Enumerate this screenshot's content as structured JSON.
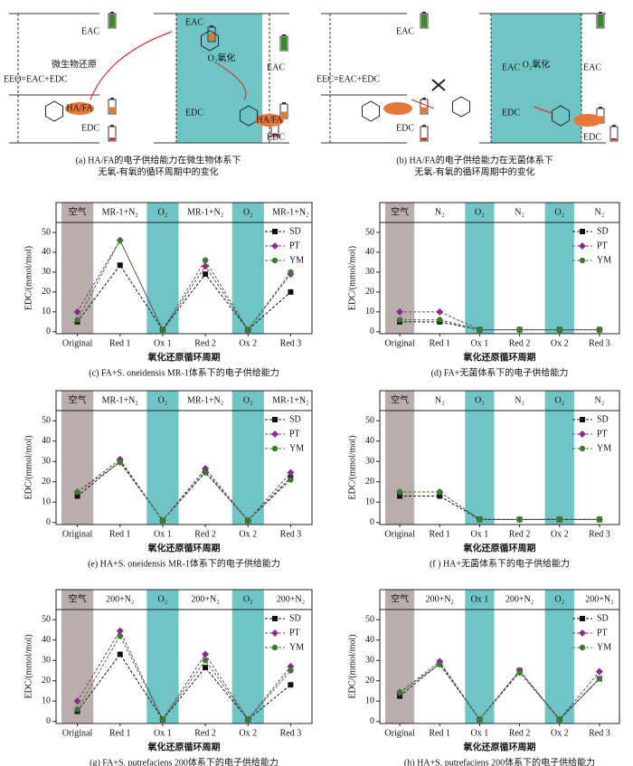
{
  "diagrams": [
    {
      "labels": [
        "EAC",
        "EEO=EAC+EDC",
        "EDC",
        "微生物还原",
        "HA/FA",
        "EAC",
        "O₂氧化",
        "EAC",
        "EDC",
        "EDC",
        "HA/FA"
      ],
      "caption": [
        "(a) HA/FA的电子供给能力在微生物体系下",
        "无氧-有氧的循环周期中的变化"
      ]
    },
    {
      "labels": [
        "EAC",
        "EEC=EAC+EDC",
        "EDC",
        "EAC",
        "O₂氧化",
        "EAC",
        "EDC",
        "EDC"
      ],
      "caption": [
        "(b) HA/FA的电子供给能力在无菌体系下",
        "无氧-有氧的循环周期中的变化"
      ]
    }
  ],
  "chart_data": [
    {
      "type": "line",
      "caption": "(c) FA+S. oneidensis MR-1体系下的电子供给能力",
      "xlabel": "氧化还原循环周期",
      "ylabel": "EDC/(mmol/mol)",
      "categories": [
        "Original",
        "Red 1",
        "Ox 1",
        "Red 2",
        "Ox 2",
        "Red 3"
      ],
      "band_labels": [
        "空气",
        "MR-1+N₂",
        "O₂",
        "MR-1+N₂",
        "O₂",
        "MR-1+N₂"
      ],
      "shade": [
        "#b9aeab",
        null,
        "#6fc5c5",
        null,
        "#6fc5c5",
        null
      ],
      "ylim": [
        -1,
        55
      ],
      "yticks": [
        0,
        10,
        20,
        30,
        40,
        50
      ],
      "series": [
        {
          "name": "SD",
          "color": "#111111",
          "marker": "square",
          "values": [
            5,
            33.5,
            1,
            29,
            1,
            20
          ]
        },
        {
          "name": "PT",
          "color": "#8b2a8b",
          "marker": "diamond",
          "values": [
            10,
            46,
            1,
            33,
            1,
            29
          ]
        },
        {
          "name": "YM",
          "color": "#3d7a2c",
          "marker": "circle",
          "values": [
            6,
            46,
            1,
            36,
            1,
            30
          ]
        }
      ]
    },
    {
      "type": "line",
      "caption": "(d) FA+无菌体系下的电子供给能力",
      "xlabel": "氧化还原循环周期",
      "ylabel": "EDC/(mmol/mol)",
      "categories": [
        "Original",
        "Red 1",
        "Ox 1",
        "Red 2",
        "Ox 2",
        "Red 3"
      ],
      "band_labels": [
        "空气",
        "N₂",
        "O₂",
        "N₂",
        "O₂",
        "N₂"
      ],
      "shade": [
        "#b9aeab",
        null,
        "#6fc5c5",
        null,
        "#6fc5c5",
        null
      ],
      "ylim": [
        -1,
        55
      ],
      "yticks": [
        0,
        10,
        20,
        30,
        40,
        50
      ],
      "series": [
        {
          "name": "SD",
          "color": "#111111",
          "marker": "square",
          "values": [
            5,
            5,
            1,
            1,
            1,
            1
          ]
        },
        {
          "name": "PT",
          "color": "#8b2a8b",
          "marker": "diamond",
          "values": [
            10,
            10,
            1,
            1,
            1,
            1
          ]
        },
        {
          "name": "YM",
          "color": "#3d7a2c",
          "marker": "circle",
          "values": [
            6,
            6,
            1,
            1,
            1,
            1
          ]
        }
      ]
    },
    {
      "type": "line",
      "caption": "(e) HA+S. oneidensis MR-1体系下的电子供给能力",
      "xlabel": "氧化还原循环周期",
      "ylabel": "EDC/(mmol/mol)",
      "categories": [
        "Original",
        "Red 1",
        "Ox 1",
        "Red 2",
        "Ox 2",
        "Red 3"
      ],
      "band_labels": [
        "空气",
        "MR-1+N₂",
        "O₂",
        "MR-1+N₂",
        "O₂",
        "MR-1+N₂"
      ],
      "shade": [
        "#b9aeab",
        null,
        "#6fc5c5",
        null,
        "#6fc5c5",
        null
      ],
      "ylim": [
        -1,
        55
      ],
      "yticks": [
        0,
        10,
        20,
        30,
        40,
        50
      ],
      "series": [
        {
          "name": "SD",
          "color": "#111111",
          "marker": "square",
          "values": [
            13,
            30,
            1,
            25,
            1,
            22
          ]
        },
        {
          "name": "PT",
          "color": "#8b2a8b",
          "marker": "diamond",
          "values": [
            15,
            31,
            1,
            26.5,
            1,
            24.5
          ]
        },
        {
          "name": "YM",
          "color": "#3d7a2c",
          "marker": "circle",
          "values": [
            15,
            29.5,
            1,
            24.5,
            1,
            21
          ]
        }
      ]
    },
    {
      "type": "line",
      "caption": "(f ) HA+无菌体系下的电子供给能力",
      "xlabel": "氧化还原循环周期",
      "ylabel": "EDC/(mmol/mol)",
      "categories": [
        "Original",
        "Red 1",
        "Ox 1",
        "Red 2",
        "Ox 2",
        "Red 3"
      ],
      "band_labels": [
        "空气",
        "N₂",
        "O₂",
        "N₂",
        "O₂",
        "N₂"
      ],
      "shade": [
        "#b9aeab",
        null,
        "#6fc5c5",
        null,
        "#6fc5c5",
        null
      ],
      "ylim": [
        -1,
        55
      ],
      "yticks": [
        0,
        10,
        20,
        30,
        40,
        50
      ],
      "series": [
        {
          "name": "SD",
          "color": "#111111",
          "marker": "square",
          "values": [
            13,
            13,
            1.5,
            1.5,
            1.5,
            1.5
          ]
        },
        {
          "name": "PT",
          "color": "#8b2a8b",
          "marker": "diamond",
          "values": [
            15,
            15,
            1.5,
            1.5,
            1.5,
            1.5
          ]
        },
        {
          "name": "YM",
          "color": "#3d7a2c",
          "marker": "circle",
          "values": [
            15,
            15,
            1.5,
            1.5,
            1.5,
            1.5
          ]
        }
      ]
    },
    {
      "type": "line",
      "caption": "(g) FA+S. putrefaciens 200体系下的电子供给能力",
      "xlabel": "氧化还原循环周期",
      "ylabel": "EDC/(mmol/mol)",
      "categories": [
        "Original",
        "Red 1",
        "Ox 1",
        "Red 2",
        "Ox 2",
        "Red 3"
      ],
      "band_labels": [
        "空气",
        "200+N₂",
        "O₂",
        "200+N₂",
        "O₂",
        "200+N₂"
      ],
      "shade": [
        "#b9aeab",
        null,
        "#6fc5c5",
        null,
        "#6fc5c5",
        null
      ],
      "ylim": [
        -1,
        55
      ],
      "yticks": [
        0,
        10,
        20,
        30,
        40,
        50
      ],
      "series": [
        {
          "name": "SD",
          "color": "#111111",
          "marker": "square",
          "values": [
            5,
            33,
            1,
            26.5,
            1,
            18
          ]
        },
        {
          "name": "PT",
          "color": "#8b2a8b",
          "marker": "diamond",
          "values": [
            10,
            44.5,
            1,
            33,
            1,
            27
          ]
        },
        {
          "name": "YM",
          "color": "#3d7a2c",
          "marker": "circle",
          "values": [
            6,
            42,
            1,
            30,
            1,
            25
          ]
        }
      ]
    },
    {
      "type": "line",
      "caption": "(h) HA+S. putrefaciens 200体系下的电子供给能力",
      "xlabel": "氧化还原循环周期",
      "ylabel": "EDC/(mmol/mol)",
      "categories": [
        "Original",
        "Red 1",
        "Ox 1",
        "Red 2",
        "Ox 2",
        "Red 3"
      ],
      "band_labels": [
        "空气",
        "200+N₂",
        "Ox 1",
        "200+N₂",
        "O₂",
        "200+N₂"
      ],
      "shade": [
        "#b9aeab",
        null,
        "#6fc5c5",
        null,
        "#6fc5c5",
        null
      ],
      "ylim": [
        -1,
        55
      ],
      "yticks": [
        0,
        10,
        20,
        30,
        40,
        50
      ],
      "series": [
        {
          "name": "SD",
          "color": "#111111",
          "marker": "square",
          "values": [
            12.5,
            28.5,
            1,
            25,
            1,
            21
          ]
        },
        {
          "name": "PT",
          "color": "#8b2a8b",
          "marker": "diamond",
          "values": [
            14,
            29.5,
            1,
            25,
            1,
            24.5
          ]
        },
        {
          "name": "YM",
          "color": "#3d7a2c",
          "marker": "circle",
          "values": [
            14.5,
            28,
            1,
            24,
            1,
            21
          ]
        }
      ]
    }
  ]
}
